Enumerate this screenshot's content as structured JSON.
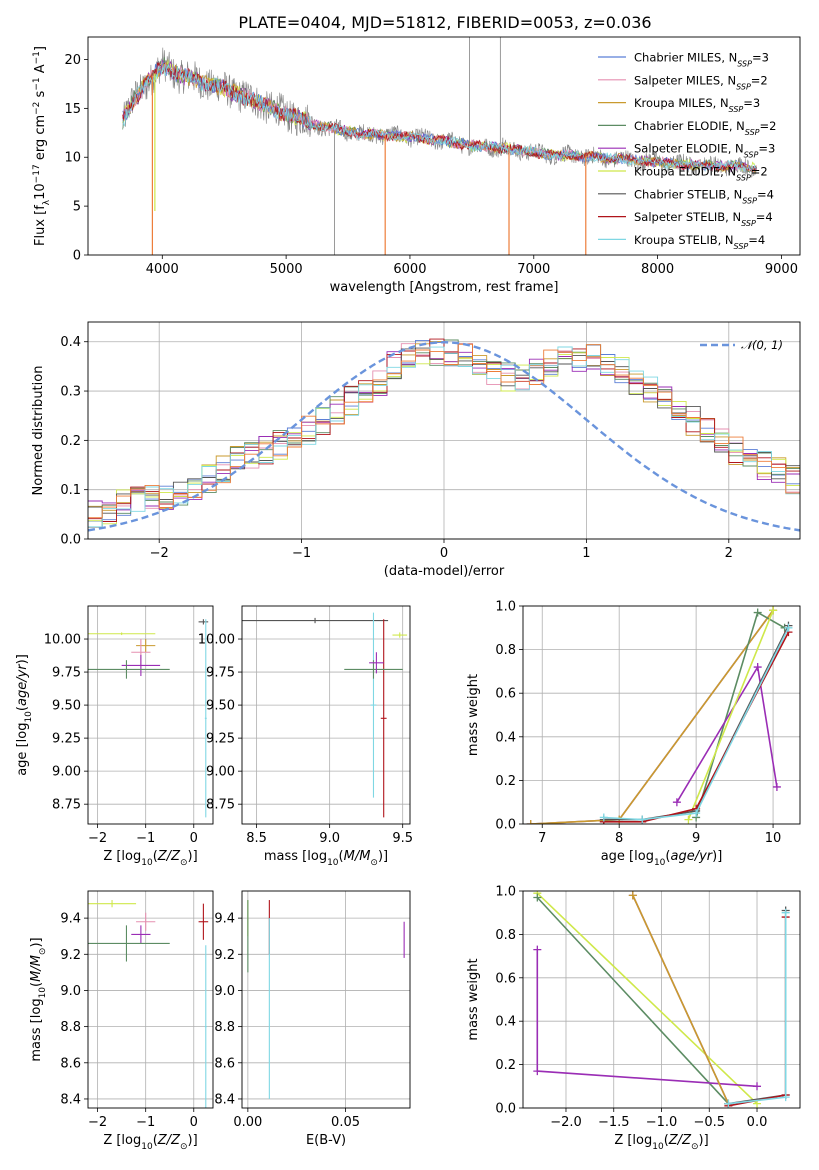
{
  "figure_title": "PLATE=0404, MJD=51812, FIBERID=0053, z=0.036",
  "colors": {
    "Chabrier MILES": "#5b7fd6",
    "Salpeter MILES": "#e58fb0",
    "Kroupa MILES": "#c99a2e",
    "Chabrier ELODIE": "#5c8c63",
    "Salpeter ELODIE": "#9a2db5",
    "Kroupa ELODIE": "#cfe84a",
    "Chabrier STELIB": "#555555",
    "Salpeter STELIB": "#b0141b",
    "Kroupa STELIB": "#7fd7e3",
    "orange_model": "#ed7d3a",
    "data": "#808080",
    "normal_curve": "#6a94dc"
  },
  "legend_models": [
    {
      "name": "Chabrier MILES",
      "nssp": "3"
    },
    {
      "name": "Salpeter MILES",
      "nssp": "2"
    },
    {
      "name": "Kroupa MILES",
      "nssp": "3"
    },
    {
      "name": "Chabrier ELODIE",
      "nssp": "2"
    },
    {
      "name": "Salpeter ELODIE",
      "nssp": "3"
    },
    {
      "name": "Kroupa ELODIE",
      "nssp": "2"
    },
    {
      "name": "Chabrier STELIB",
      "nssp": "4"
    },
    {
      "name": "Salpeter STELIB",
      "nssp": "4"
    },
    {
      "name": "Kroupa STELIB",
      "nssp": "4"
    }
  ],
  "chart_data": [
    {
      "id": "spectrum",
      "type": "line",
      "title": "PLATE=0404, MJD=51812, FIBERID=0053, z=0.036",
      "xlabel": "wavelength [Angstrom, rest frame]",
      "ylabel": "Flux [f_λ 10^-17 erg cm^-2 s^-1 A^-1]",
      "xlim": [
        3400,
        9150
      ],
      "ylim": [
        0,
        22.3
      ],
      "xticks": [
        4000,
        5000,
        6000,
        7000,
        8000,
        9000
      ],
      "yticks": [
        0,
        5,
        10,
        15,
        20
      ],
      "legend_position": "upper right",
      "grid": false,
      "continuum": {
        "wavelength": [
          3680,
          3750,
          3900,
          4000,
          4100,
          4300,
          4500,
          4700,
          5000,
          5300,
          5600,
          5900,
          6200,
          6500,
          6800,
          7100,
          7400,
          7700,
          8000,
          8300,
          8600,
          8800
        ],
        "flux": [
          13.8,
          15.5,
          18.0,
          19.4,
          18.6,
          17.8,
          17.0,
          16.0,
          14.4,
          13.1,
          12.4,
          12.2,
          11.8,
          11.2,
          10.9,
          10.3,
          10.1,
          9.8,
          9.5,
          9.2,
          9.1,
          9.0
        ]
      },
      "model_dropouts": [
        {
          "wavelength": 3920,
          "flux": 0
        },
        {
          "wavelength": 3940,
          "flux": 4.5
        },
        {
          "wavelength": 5800,
          "flux": 0
        },
        {
          "wavelength": 6800,
          "flux": 0
        },
        {
          "wavelength": 7420,
          "flux": 0
        }
      ],
      "data_spikes": [
        {
          "wavelength": 5390,
          "flux": 0
        },
        {
          "wavelength": 6480,
          "flux": 22.3
        },
        {
          "wavelength": 6730,
          "flux": 22.3
        },
        {
          "wavelength": 6750,
          "flux": 12.0
        }
      ]
    },
    {
      "id": "residual_distribution",
      "type": "histogram",
      "xlabel": "(data-model)/error",
      "ylabel": "Normed distribution",
      "xlim": [
        -2.5,
        2.5
      ],
      "ylim": [
        0,
        0.44
      ],
      "xticks": [
        -2,
        -1,
        0,
        1,
        2
      ],
      "yticks": [
        0.0,
        0.1,
        0.2,
        0.3,
        0.4
      ],
      "grid": true,
      "reference_curve": {
        "label": "N(0,1)",
        "style": "dashed",
        "mean": 0,
        "sigma": 1
      },
      "bin_width": 0.1,
      "bin_start": -2.5,
      "histogram_envelope": [
        0.05,
        0.06,
        0.07,
        0.08,
        0.08,
        0.09,
        0.09,
        0.1,
        0.12,
        0.14,
        0.16,
        0.17,
        0.18,
        0.19,
        0.2,
        0.22,
        0.24,
        0.26,
        0.28,
        0.3,
        0.32,
        0.35,
        0.37,
        0.38,
        0.38,
        0.38,
        0.37,
        0.35,
        0.34,
        0.33,
        0.33,
        0.34,
        0.36,
        0.37,
        0.37,
        0.37,
        0.36,
        0.34,
        0.32,
        0.3,
        0.28,
        0.26,
        0.24,
        0.22,
        0.2,
        0.18,
        0.17,
        0.15,
        0.14,
        0.12,
        0.11,
        0.1,
        0.09,
        0.08,
        0.07,
        0.07,
        0.06,
        0.05,
        0.05,
        0.04,
        0.04,
        0.04,
        0.03,
        0.03,
        0.03,
        0.03,
        0.02,
        0.02,
        0.02,
        0.02
      ]
    },
    {
      "id": "age_vs_Z",
      "type": "errorbar",
      "xlabel": "Z [log10(Z/Z⊙)]",
      "ylabel": "age [log10(age/yr)]",
      "xlim": [
        -2.2,
        0.4
      ],
      "ylim": [
        8.6,
        10.25
      ],
      "xticks": [
        -2,
        -1,
        0
      ],
      "yticks": [
        8.75,
        9.0,
        9.25,
        9.5,
        9.75,
        10.0
      ],
      "grid": true,
      "points": [
        {
          "model": "Kroupa ELODIE",
          "x": -1.5,
          "y": 10.04,
          "xerr": 0.7,
          "yerr": 0.01
        },
        {
          "model": "Kroupa MILES",
          "x": -1.0,
          "y": 9.95,
          "xerr": 0.2,
          "yerr": 0.05
        },
        {
          "model": "Salpeter MILES",
          "x": -1.1,
          "y": 9.9,
          "xerr": 0.2,
          "yerr": 0.1
        },
        {
          "model": "Salpeter ELODIE",
          "x": -1.1,
          "y": 9.8,
          "xerr": 0.4,
          "yerr": 0.08
        },
        {
          "model": "Chabrier ELODIE",
          "x": -1.4,
          "y": 9.77,
          "xerr": 0.9,
          "yerr": 0.07
        },
        {
          "model": "Chabrier STELIB",
          "x": 0.2,
          "y": 10.13,
          "xerr": 0.1,
          "yerr": 0.02
        },
        {
          "model": "Kroupa STELIB",
          "x": 0.25,
          "y": 9.4,
          "xerr": 0.02,
          "yerr": 0.75
        }
      ]
    },
    {
      "id": "age_vs_mass",
      "type": "errorbar",
      "xlabel": "mass [log10(M/M⊙)]",
      "ylabel": "",
      "xlim": [
        8.4,
        9.55
      ],
      "ylim": [
        8.6,
        10.25
      ],
      "xticks": [
        8.5,
        9.0,
        9.5
      ],
      "yticks": [
        8.75,
        9.0,
        9.25,
        9.5,
        9.75,
        10.0
      ],
      "grid": true,
      "points": [
        {
          "model": "Chabrier STELIB",
          "x": 8.9,
          "y": 10.14,
          "xerr": 0.5,
          "yerr": 0.02
        },
        {
          "model": "Salpeter STELIB",
          "x": 9.37,
          "y": 9.4,
          "xerr": 0.02,
          "yerr": 0.75
        },
        {
          "model": "Kroupa STELIB",
          "x": 9.3,
          "y": 9.5,
          "xerr": 0.02,
          "yerr": 0.7
        },
        {
          "model": "Chabrier ELODIE",
          "x": 9.3,
          "y": 9.77,
          "xerr": 0.2,
          "yerr": 0.07
        },
        {
          "model": "Salpeter ELODIE",
          "x": 9.32,
          "y": 9.82,
          "xerr": 0.05,
          "yerr": 0.08
        },
        {
          "model": "Kroupa ELODIE",
          "x": 9.48,
          "y": 10.03,
          "xerr": 0.05,
          "yerr": 0.02
        }
      ]
    },
    {
      "id": "massweight_vs_age",
      "type": "line",
      "xlabel": "age [log10(age/yr)]",
      "ylabel": "mass weight",
      "xlim": [
        6.75,
        10.35
      ],
      "ylim": [
        0,
        1.0
      ],
      "xticks": [
        7,
        8,
        9,
        10
      ],
      "yticks": [
        0.0,
        0.2,
        0.4,
        0.6,
        0.8,
        1.0
      ],
      "grid": true,
      "series": [
        {
          "model": "Chabrier MILES",
          "x": [
            6.85,
            8.0,
            10.0
          ],
          "y": [
            0.0,
            0.02,
            0.98
          ]
        },
        {
          "model": "Salpeter MILES",
          "x": [
            6.85,
            8.0,
            10.0
          ],
          "y": [
            0.0,
            0.02,
            0.98
          ]
        },
        {
          "model": "Kroupa MILES",
          "x": [
            6.85,
            8.0,
            10.0
          ],
          "y": [
            0.0,
            0.02,
            0.98
          ]
        },
        {
          "model": "Chabrier ELODIE",
          "x": [
            9.0,
            9.8,
            10.15
          ],
          "y": [
            0.03,
            0.97,
            0.9
          ]
        },
        {
          "model": "Salpeter ELODIE",
          "x": [
            8.75,
            9.8,
            10.05
          ],
          "y": [
            0.1,
            0.72,
            0.17
          ]
        },
        {
          "model": "Kroupa ELODIE",
          "x": [
            8.9,
            10.0
          ],
          "y": [
            0.02,
            0.98
          ]
        },
        {
          "model": "Chabrier STELIB",
          "x": [
            7.8,
            8.3,
            9.0,
            10.2
          ],
          "y": [
            0.02,
            0.02,
            0.06,
            0.91
          ]
        },
        {
          "model": "Salpeter STELIB",
          "x": [
            7.8,
            8.3,
            9.0,
            10.2
          ],
          "y": [
            0.01,
            0.01,
            0.07,
            0.88
          ]
        },
        {
          "model": "Kroupa STELIB",
          "x": [
            7.8,
            8.3,
            9.0,
            10.2
          ],
          "y": [
            0.03,
            0.02,
            0.05,
            0.9
          ]
        }
      ]
    },
    {
      "id": "mass_vs_Z",
      "type": "errorbar",
      "xlabel": "Z [log10(Z/Z⊙)]",
      "ylabel": "mass [log10(M/M⊙)]",
      "xlim": [
        -2.2,
        0.4
      ],
      "ylim": [
        8.35,
        9.55
      ],
      "xticks": [
        -2,
        -1,
        0
      ],
      "yticks": [
        8.4,
        8.6,
        8.8,
        9.0,
        9.2,
        9.4
      ],
      "grid": true,
      "points": [
        {
          "model": "Kroupa ELODIE",
          "x": -1.7,
          "y": 9.48,
          "xerr": 0.5,
          "yerr": 0.02
        },
        {
          "model": "Salpeter MILES",
          "x": -1.0,
          "y": 9.38,
          "xerr": 0.2,
          "yerr": 0.05
        },
        {
          "model": "Salpeter ELODIE",
          "x": -1.1,
          "y": 9.31,
          "xerr": 0.2,
          "yerr": 0.05
        },
        {
          "model": "Chabrier ELODIE",
          "x": -1.4,
          "y": 9.26,
          "xerr": 0.9,
          "yerr": 0.1
        },
        {
          "model": "Salpeter STELIB",
          "x": 0.2,
          "y": 9.38,
          "xerr": 0.1,
          "yerr": 0.1
        },
        {
          "model": "Kroupa STELIB",
          "x": 0.25,
          "y": 8.8,
          "xerr": 0.02,
          "yerr": 0.45
        }
      ]
    },
    {
      "id": "mass_vs_EBV",
      "type": "errorbar",
      "xlabel": "E(B-V)",
      "ylabel": "",
      "xlim": [
        -0.003,
        0.083
      ],
      "ylim": [
        8.35,
        9.55
      ],
      "xticks": [
        0.0,
        0.05
      ],
      "yticks": [
        8.4,
        8.6,
        8.8,
        9.0,
        9.2,
        9.4
      ],
      "grid": true,
      "points": [
        {
          "model": "Kroupa ELODIE",
          "x": 0.0,
          "y": 9.4,
          "xerr": 0.0,
          "yerr": 0.1
        },
        {
          "model": "Chabrier ELODIE",
          "x": 0.0,
          "y": 9.3,
          "xerr": 0.0,
          "yerr": 0.2
        },
        {
          "model": "Salpeter STELIB",
          "x": 0.011,
          "y": 9.35,
          "xerr": 0.0,
          "yerr": 0.15
        },
        {
          "model": "Kroupa STELIB",
          "x": 0.011,
          "y": 8.9,
          "xerr": 0.0,
          "yerr": 0.5
        },
        {
          "model": "Salpeter ELODIE",
          "x": 0.08,
          "y": 9.28,
          "xerr": 0.0,
          "yerr": 0.1
        }
      ]
    },
    {
      "id": "massweight_vs_Z",
      "type": "line",
      "xlabel": "Z [log10(Z/Z⊙)]",
      "ylabel": "mass weight",
      "xlim": [
        -2.45,
        0.45
      ],
      "ylim": [
        0,
        1.0
      ],
      "xticks": [
        -2.0,
        -1.5,
        -1.0,
        -0.5,
        0.0
      ],
      "yticks": [
        0.0,
        0.2,
        0.4,
        0.6,
        0.8,
        1.0
      ],
      "grid": true,
      "series": [
        {
          "model": "Kroupa ELODIE",
          "x": [
            -2.3,
            0.0
          ],
          "y": [
            0.99,
            0.02
          ]
        },
        {
          "model": "Chabrier ELODIE",
          "x": [
            -2.3,
            -0.3
          ],
          "y": [
            0.97,
            0.02
          ]
        },
        {
          "model": "Salpeter ELODIE",
          "x": [
            -2.3,
            -2.3,
            0.0
          ],
          "y": [
            0.73,
            0.17,
            0.1
          ]
        },
        {
          "model": "Chabrier MILES",
          "x": [
            -1.3,
            -0.3
          ],
          "y": [
            0.98,
            0.02
          ]
        },
        {
          "model": "Salpeter MILES",
          "x": [
            -1.3,
            -0.3
          ],
          "y": [
            0.98,
            0.02
          ]
        },
        {
          "model": "Kroupa MILES",
          "x": [
            -1.3,
            -0.3
          ],
          "y": [
            0.98,
            0.02
          ]
        },
        {
          "model": "Chabrier STELIB",
          "x": [
            -0.3,
            0.3,
            0.3
          ],
          "y": [
            0.02,
            0.06,
            0.91
          ]
        },
        {
          "model": "Salpeter STELIB",
          "x": [
            -0.3,
            0.3,
            0.3
          ],
          "y": [
            0.01,
            0.06,
            0.88
          ]
        },
        {
          "model": "Kroupa STELIB",
          "x": [
            -0.3,
            0.3,
            0.3
          ],
          "y": [
            0.02,
            0.05,
            0.9
          ]
        }
      ]
    }
  ]
}
